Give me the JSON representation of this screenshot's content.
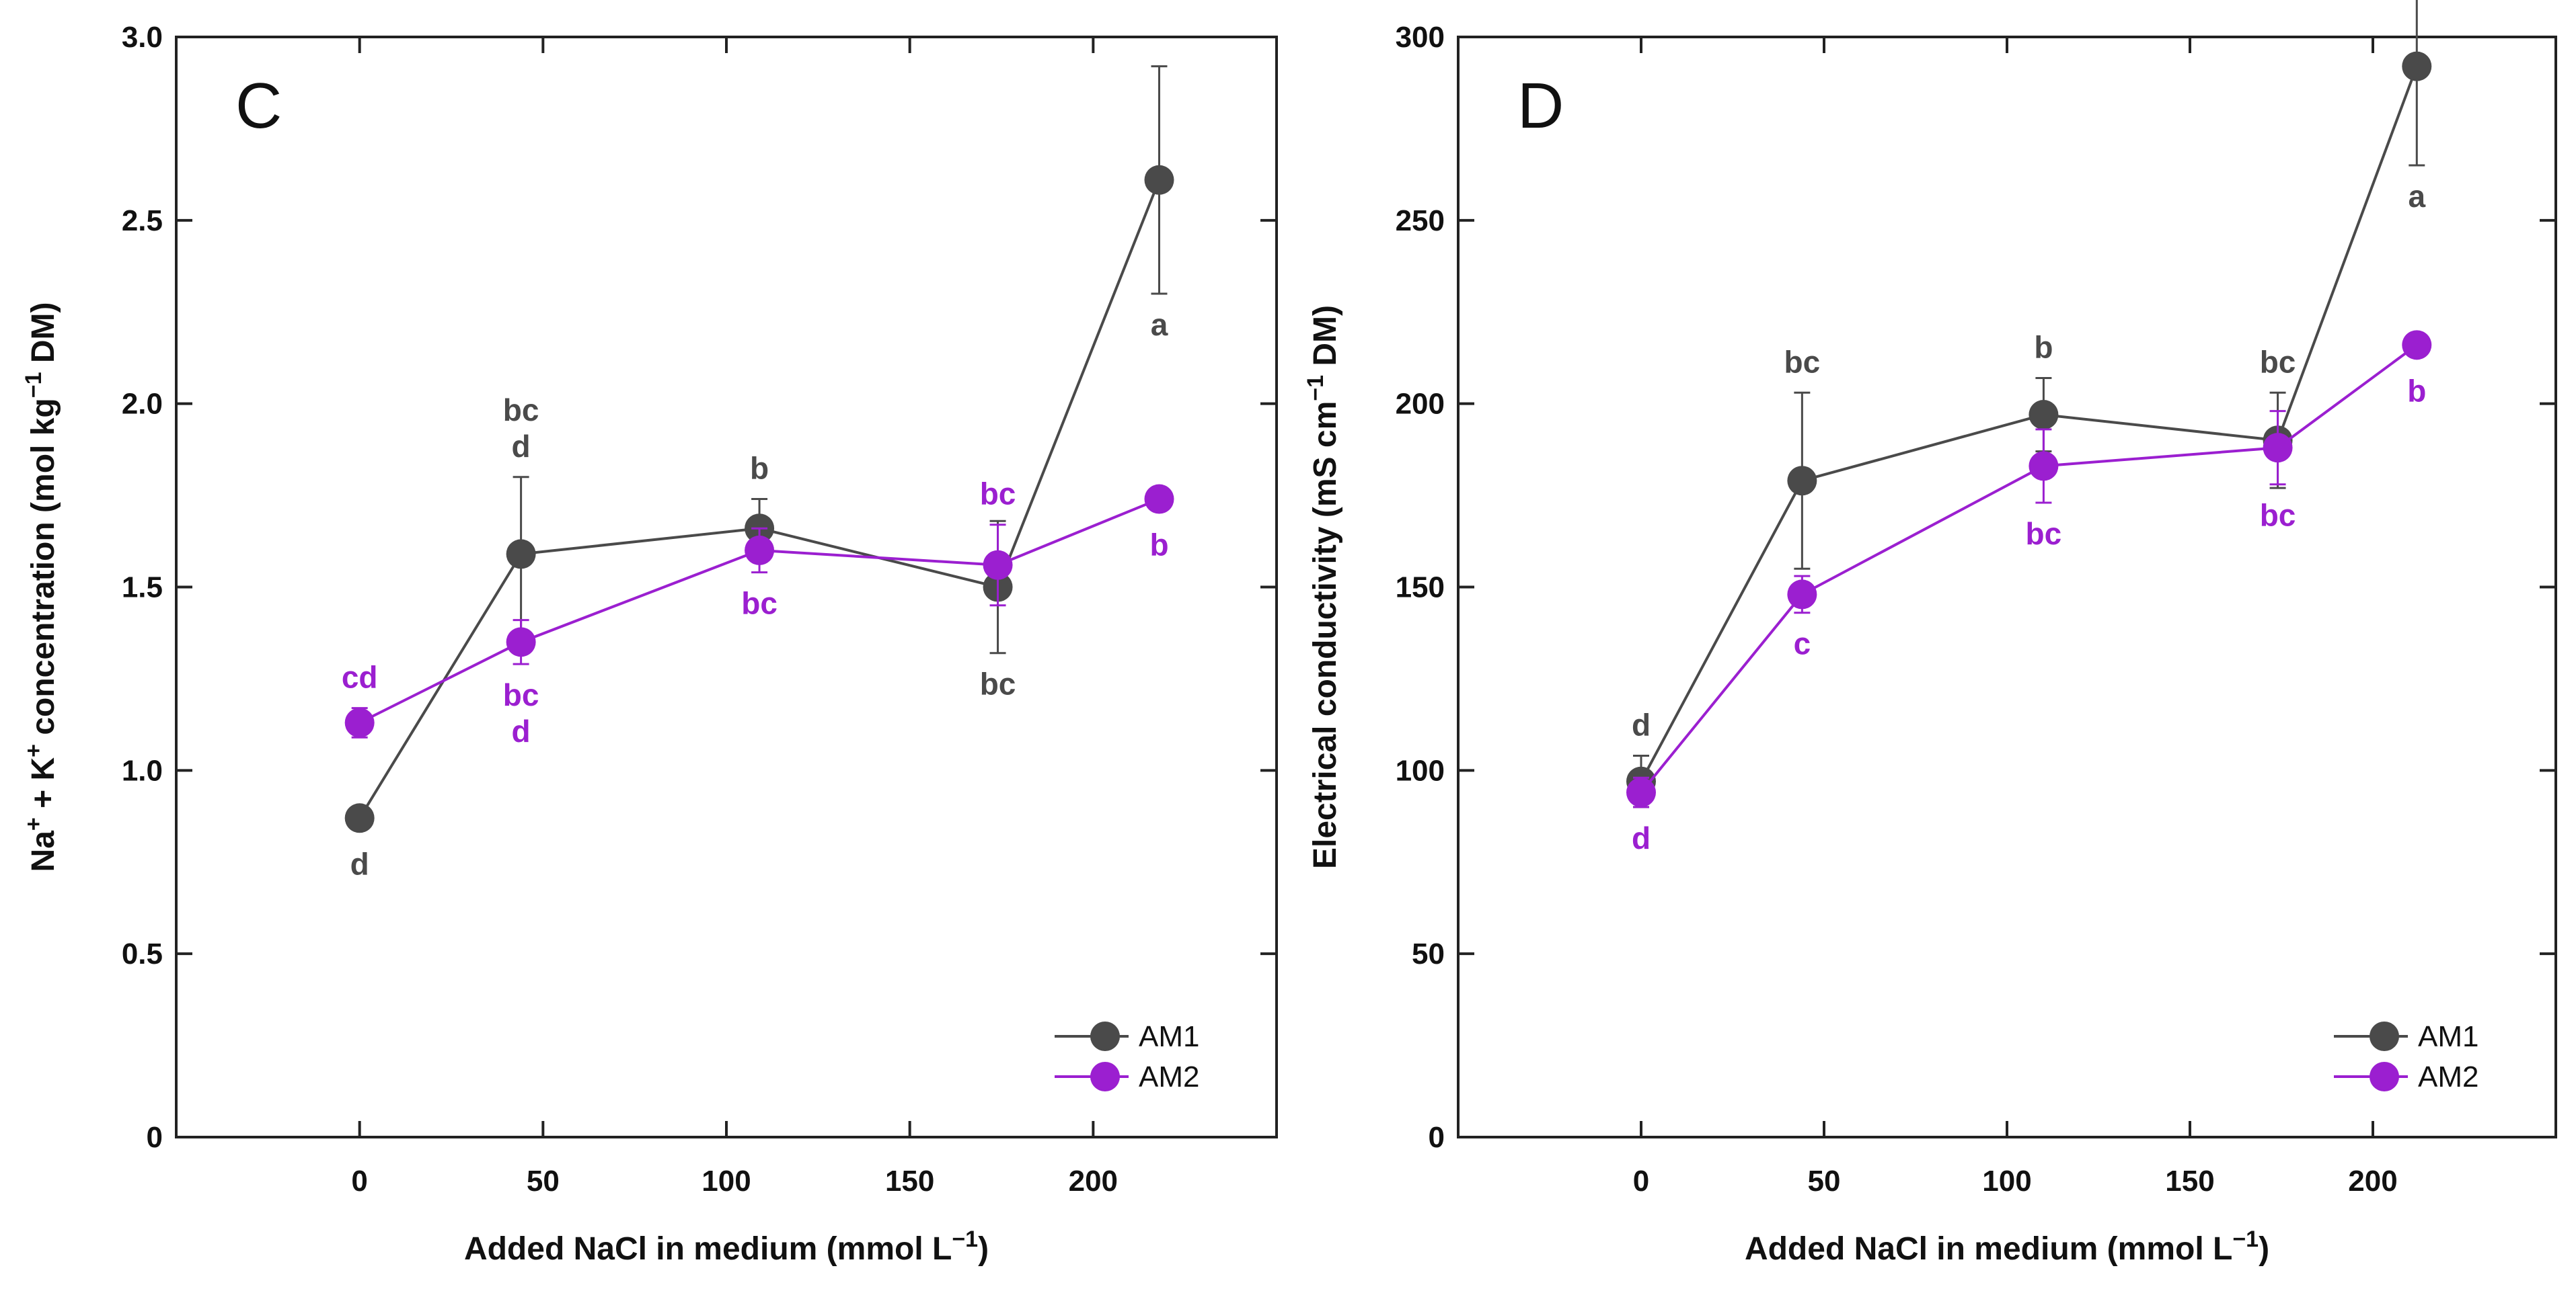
{
  "chart_data": [
    {
      "type": "line",
      "panel": "C",
      "xlabel": "Added NaCl in medium (mmol L",
      "xlabel_sup": "−1",
      "xlabel_end": ")",
      "ylabel_parts": [
        "Na",
        "+",
        " + K",
        "+",
        " concentration (mol kg",
        "−1",
        " DM)"
      ],
      "xlim": [
        -50,
        250
      ],
      "ylim": [
        0,
        3.0
      ],
      "xticks": [
        0,
        50,
        100,
        150,
        200
      ],
      "xtick_labels": [
        "0",
        "50",
        "100",
        "150",
        "200"
      ],
      "yticks": [
        0,
        0.5,
        1.0,
        1.5,
        2.0,
        2.5,
        3.0
      ],
      "ytick_labels": [
        "0",
        "0.5",
        "1.0",
        "1.5",
        "2.0",
        "2.5",
        "3.0"
      ],
      "series": [
        {
          "name": "AM1",
          "color": "#4a4a4a",
          "x": [
            0,
            44,
            109,
            174,
            218
          ],
          "y": [
            0.87,
            1.59,
            1.66,
            1.5,
            2.61
          ],
          "err": [
            0.03,
            0.21,
            0.08,
            0.18,
            0.31
          ],
          "letters": [
            "d",
            "bc\nd",
            "b",
            "bc",
            "a"
          ],
          "letter_pos": [
            "below",
            "above",
            "above",
            "below",
            "below"
          ]
        },
        {
          "name": "AM2",
          "color": "#9b1fd0",
          "x": [
            0,
            44,
            109,
            174,
            218
          ],
          "y": [
            1.13,
            1.35,
            1.6,
            1.56,
            1.74
          ],
          "err": [
            0.04,
            0.06,
            0.06,
            0.11,
            0.03
          ],
          "letters": [
            "cd",
            "bc\nd",
            "bc",
            "bc",
            "b"
          ],
          "letter_pos": [
            "above",
            "below",
            "below",
            "above",
            "below"
          ]
        }
      ],
      "legend": [
        "AM1",
        "AM2"
      ],
      "legend_loc": "bottom-right"
    },
    {
      "type": "line",
      "panel": "D",
      "xlabel": "Added NaCl in medium (mmol L",
      "xlabel_sup": "−1",
      "xlabel_end": ")",
      "ylabel_parts": [
        "Electrical conductivity (mS cm",
        "−1",
        " DM)"
      ],
      "xlim": [
        -50,
        250
      ],
      "ylim": [
        0,
        300
      ],
      "xticks": [
        0,
        50,
        100,
        150,
        200
      ],
      "xtick_labels": [
        "0",
        "50",
        "100",
        "150",
        "200"
      ],
      "yticks": [
        0,
        50,
        100,
        150,
        200,
        250,
        300
      ],
      "ytick_labels": [
        "0",
        "50",
        "100",
        "150",
        "200",
        "250",
        "300"
      ],
      "series": [
        {
          "name": "AM1",
          "color": "#4a4a4a",
          "x": [
            0,
            44,
            110,
            174,
            212
          ],
          "y": [
            97,
            179,
            197,
            190,
            292
          ],
          "err": [
            7,
            24,
            10,
            13,
            27
          ],
          "letters": [
            "d",
            "bc",
            "b",
            "bc",
            "a"
          ],
          "letter_pos": [
            "above",
            "above",
            "above",
            "above",
            "below"
          ]
        },
        {
          "name": "AM2",
          "color": "#9b1fd0",
          "x": [
            0,
            44,
            110,
            174,
            212
          ],
          "y": [
            94,
            148,
            183,
            188,
            216
          ],
          "err": [
            4,
            5,
            10,
            10,
            3
          ],
          "letters": [
            "d",
            "c",
            "bc",
            "bc",
            "b"
          ],
          "letter_pos": [
            "below",
            "below",
            "below",
            "below",
            "below"
          ]
        }
      ],
      "legend": [
        "AM1",
        "AM2"
      ],
      "legend_loc": "bottom-right"
    }
  ]
}
